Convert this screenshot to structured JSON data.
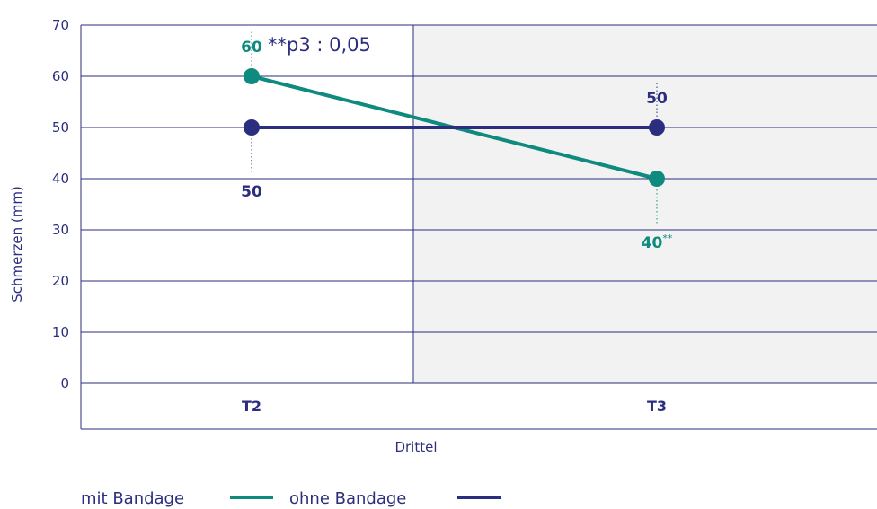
{
  "chart_data": {
    "type": "line",
    "categories": [
      "T2",
      "T3"
    ],
    "xlabel": "Drittel",
    "ylabel": "Schmerzen (mm)",
    "ylim": [
      0,
      70
    ],
    "yticks": [
      0,
      10,
      20,
      30,
      40,
      50,
      60,
      70
    ],
    "grid": true,
    "legend_position": "bottom-left",
    "series": [
      {
        "name": "mit Bandage",
        "color": "#0e8a7e",
        "values": [
          60,
          40
        ],
        "labels": [
          "60",
          "40"
        ],
        "label_suffix": [
          "",
          "**"
        ]
      },
      {
        "name": "ohne Bandage",
        "color": "#2b2e7e",
        "values": [
          50,
          50
        ],
        "labels": [
          "50",
          "50"
        ],
        "label_suffix": [
          "",
          ""
        ]
      }
    ],
    "annotations": [
      {
        "text": "**p3 : 0,05"
      }
    ],
    "colors": {
      "axis_text": "#2b2e7e",
      "grid": "#2b2e7e",
      "shaded_panel": "#f2f2f2"
    }
  }
}
